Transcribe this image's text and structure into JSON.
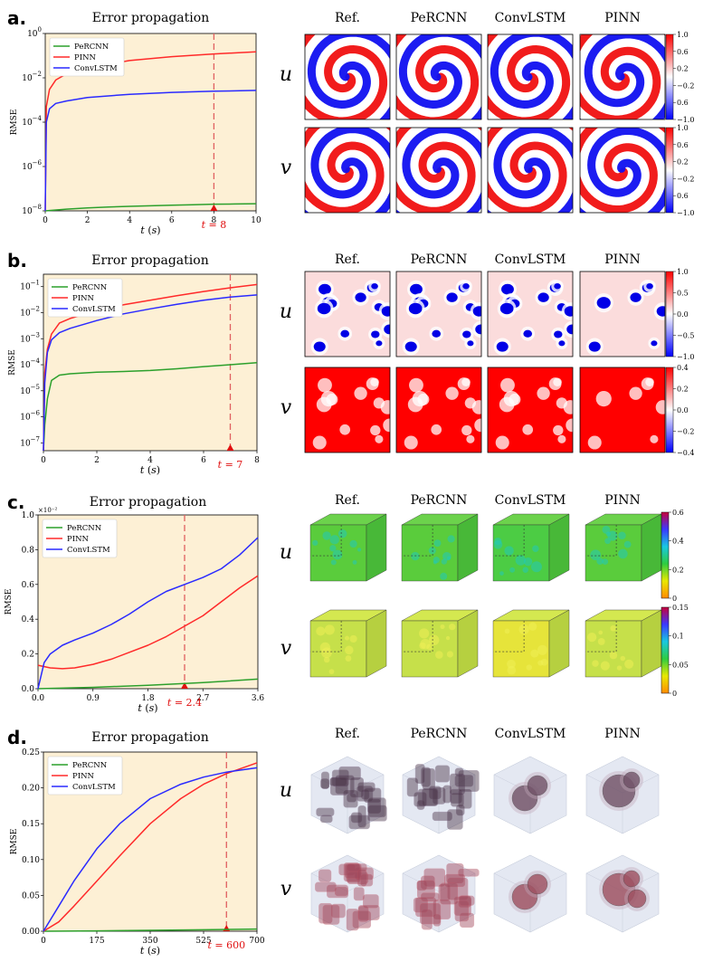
{
  "panels": [
    {
      "label": "a.",
      "title": "Error propagation",
      "columns": [
        "Ref.",
        "PeRCNN",
        "ConvLSTM",
        "PINN"
      ],
      "rows": [
        "u",
        "v"
      ],
      "colorbars": [
        {
          "ticks": [
            "1.0",
            "0.6",
            "0.2",
            "−0.2",
            "0.6",
            "−1.0"
          ],
          "colors": [
            "#ff0000",
            "#ffffff",
            "#0000ff"
          ]
        },
        {
          "ticks": [
            "1.0",
            "0.6",
            "0.2",
            "−0.2",
            "0.6",
            "−1.0"
          ],
          "colors": [
            "#ff0000",
            "#ffffff",
            "#0000ff"
          ]
        }
      ],
      "chart_data": {
        "type": "line",
        "xlabel": "t (s)",
        "ylabel": "RMSE",
        "yscale": "log",
        "xlim": [
          0,
          10
        ],
        "ylim": [
          1e-08,
          1
        ],
        "xticks": [
          "0",
          "2",
          "4",
          "6",
          "8",
          "10"
        ],
        "yticks": [
          "10^-8",
          "10^-6",
          "10^-4",
          "10^-2",
          "10^0"
        ],
        "marker": {
          "x": 8,
          "label": "t = 8"
        },
        "legend": "top-left",
        "series": [
          {
            "name": "PeRCNN",
            "color": "#2ca02c",
            "x": [
              0,
              1,
              2,
              3,
              4,
              5,
              6,
              7,
              8,
              9,
              10
            ],
            "y": [
              1e-08,
              1.2e-08,
              1.35e-08,
              1.5e-08,
              1.6e-08,
              1.7e-08,
              1.8e-08,
              1.9e-08,
              2e-08,
              2.05e-08,
              2.1e-08
            ]
          },
          {
            "name": "PINN",
            "color": "#ff2a2a",
            "x": [
              0,
              0.05,
              0.2,
              0.5,
              1,
              2,
              4,
              6,
              8,
              10
            ],
            "y": [
              1e-08,
              0.0005,
              0.003,
              0.008,
              0.015,
              0.028,
              0.06,
              0.09,
              0.12,
              0.15
            ]
          },
          {
            "name": "ConvLSTM",
            "color": "#2a2aff",
            "x": [
              0,
              0.05,
              0.2,
              0.5,
              1,
              2,
              4,
              6,
              8,
              10
            ],
            "y": [
              1e-08,
              0.0001,
              0.0004,
              0.0007,
              0.0009,
              0.0013,
              0.0018,
              0.0022,
              0.0025,
              0.0027
            ]
          }
        ]
      }
    },
    {
      "label": "b.",
      "title": "Error propagation",
      "columns": [
        "Ref.",
        "PeRCNN",
        "ConvLSTM",
        "PINN"
      ],
      "rows": [
        "u",
        "v"
      ],
      "colorbars": [
        {
          "ticks": [
            "1.0",
            "0.5",
            "0.0",
            "−0.5",
            "−1.0"
          ],
          "colors": [
            "#ff0000",
            "#ffffff",
            "#0000ff"
          ]
        },
        {
          "ticks": [
            "0.4",
            "0.2",
            "0.0",
            "−0.2",
            "−0.4"
          ],
          "colors": [
            "#ff0000",
            "#ffffff",
            "#0000ff"
          ]
        }
      ],
      "chart_data": {
        "type": "line",
        "xlabel": "t (s)",
        "ylabel": "RMSE",
        "yscale": "log",
        "xlim": [
          0,
          8
        ],
        "ylim": [
          5e-08,
          0.3
        ],
        "xticks": [
          "0",
          "2",
          "4",
          "6",
          "8"
        ],
        "yticks": [
          "10^-7",
          "10^-6",
          "10^-5",
          "10^-4",
          "10^-3",
          "10^-2",
          "10^-1"
        ],
        "marker": {
          "x": 7,
          "label": "t = 7"
        },
        "legend": "top-left",
        "series": [
          {
            "name": "PeRCNN",
            "color": "#2ca02c",
            "x": [
              0,
              0.05,
              0.15,
              0.3,
              0.6,
              1,
              2,
              3,
              4,
              5,
              6,
              7,
              8
            ],
            "y": [
              5e-08,
              5e-07,
              5e-06,
              2.5e-05,
              4e-05,
              4.5e-05,
              5.2e-05,
              5.5e-05,
              6e-05,
              7e-05,
              8.5e-05,
              0.0001,
              0.00012
            ]
          },
          {
            "name": "PINN",
            "color": "#ff2a2a",
            "x": [
              0,
              0.05,
              0.15,
              0.3,
              0.6,
              1,
              2,
              3,
              4,
              5,
              6,
              7,
              8
            ],
            "y": [
              5e-08,
              5e-05,
              0.0004,
              0.0015,
              0.004,
              0.006,
              0.012,
              0.02,
              0.03,
              0.045,
              0.065,
              0.09,
              0.12
            ]
          },
          {
            "name": "ConvLSTM",
            "color": "#2a2aff",
            "x": [
              0,
              0.05,
              0.15,
              0.3,
              0.6,
              1,
              2,
              3,
              4,
              5,
              6,
              7,
              8
            ],
            "y": [
              5e-08,
              2e-05,
              0.0003,
              0.0009,
              0.0017,
              0.0025,
              0.005,
              0.009,
              0.014,
              0.021,
              0.03,
              0.04,
              0.048
            ]
          }
        ]
      }
    },
    {
      "label": "c.",
      "title": "Error propagation",
      "columns": [
        "Ref.",
        "PeRCNN",
        "ConvLSTM",
        "PINN"
      ],
      "rows": [
        "u",
        "v"
      ],
      "colorbars": [
        {
          "ticks": [
            "0.6",
            "0.4",
            "0.2",
            "0"
          ],
          "colors": [
            "#c8003c",
            "#3a3aff",
            "#19c8e0",
            "#2ecc40",
            "#e8e800",
            "#ff8c00"
          ]
        },
        {
          "ticks": [
            "0.15",
            "0.1",
            "0.05",
            "0"
          ],
          "colors": [
            "#c8003c",
            "#3a3aff",
            "#19c8e0",
            "#2ecc40",
            "#e8e800",
            "#ff8c00"
          ]
        }
      ],
      "chart_data": {
        "type": "line",
        "xlabel": "t (s)",
        "ylabel": "RMSE",
        "yscale": "linear",
        "yexponent": "×10⁻²",
        "xlim": [
          0,
          3.6
        ],
        "ylim": [
          0,
          1.0
        ],
        "xticks": [
          "0.0",
          "0.9",
          "1.8",
          "2.7",
          "3.6"
        ],
        "yticks": [
          "0.0",
          "0.2",
          "0.4",
          "0.6",
          "0.8",
          "1.0"
        ],
        "marker": {
          "x": 2.4,
          "label": "t = 2.4"
        },
        "legend": "top-left",
        "series": [
          {
            "name": "PeRCNN",
            "color": "#2ca02c",
            "x": [
              0,
              0.9,
              1.8,
              2.7,
              3.6
            ],
            "y": [
              0.0,
              0.008,
              0.02,
              0.035,
              0.055
            ]
          },
          {
            "name": "PINN",
            "color": "#ff2a2a",
            "x": [
              0,
              0.2,
              0.4,
              0.6,
              0.9,
              1.2,
              1.5,
              1.8,
              2.1,
              2.4,
              2.7,
              3.0,
              3.3,
              3.6
            ],
            "y": [
              0.135,
              0.12,
              0.115,
              0.12,
              0.14,
              0.17,
              0.21,
              0.25,
              0.3,
              0.36,
              0.42,
              0.5,
              0.58,
              0.65
            ]
          },
          {
            "name": "ConvLSTM",
            "color": "#2a2aff",
            "x": [
              0,
              0.1,
              0.2,
              0.4,
              0.6,
              0.9,
              1.2,
              1.5,
              1.8,
              2.1,
              2.4,
              2.7,
              3.0,
              3.3,
              3.6
            ],
            "y": [
              0.0,
              0.15,
              0.2,
              0.25,
              0.28,
              0.32,
              0.37,
              0.43,
              0.5,
              0.56,
              0.6,
              0.64,
              0.69,
              0.77,
              0.87
            ]
          }
        ]
      }
    },
    {
      "label": "d.",
      "title": "Error propagation",
      "columns": [
        "Ref.",
        "PeRCNN",
        "ConvLSTM",
        "PINN"
      ],
      "rows": [
        "u",
        "v"
      ],
      "chart_data": {
        "type": "line",
        "xlabel": "t (s)",
        "ylabel": "RMSE",
        "yscale": "linear",
        "xlim": [
          0,
          700
        ],
        "ylim": [
          0,
          0.25
        ],
        "xticks": [
          "0",
          "175",
          "350",
          "525",
          "700"
        ],
        "yticks": [
          "0.00",
          "0.05",
          "0.10",
          "0.15",
          "0.20",
          "0.25"
        ],
        "marker": {
          "x": 600,
          "label": "t = 600"
        },
        "legend": "top-left",
        "series": [
          {
            "name": "PeRCNN",
            "color": "#2ca02c",
            "x": [
              0,
              175,
              350,
              525,
              700
            ],
            "y": [
              0.0,
              0.0005,
              0.0012,
              0.002,
              0.003
            ]
          },
          {
            "name": "PINN",
            "color": "#ff2a2a",
            "x": [
              0,
              50,
              100,
              175,
              250,
              350,
              450,
              525,
              600,
              700
            ],
            "y": [
              0.0,
              0.013,
              0.035,
              0.07,
              0.105,
              0.15,
              0.185,
              0.205,
              0.22,
              0.235
            ]
          },
          {
            "name": "ConvLSTM",
            "color": "#2a2aff",
            "x": [
              0,
              50,
              100,
              175,
              250,
              350,
              450,
              525,
              600,
              700
            ],
            "y": [
              0.0,
              0.035,
              0.07,
              0.115,
              0.15,
              0.185,
              0.205,
              0.215,
              0.222,
              0.228
            ]
          }
        ]
      }
    }
  ]
}
